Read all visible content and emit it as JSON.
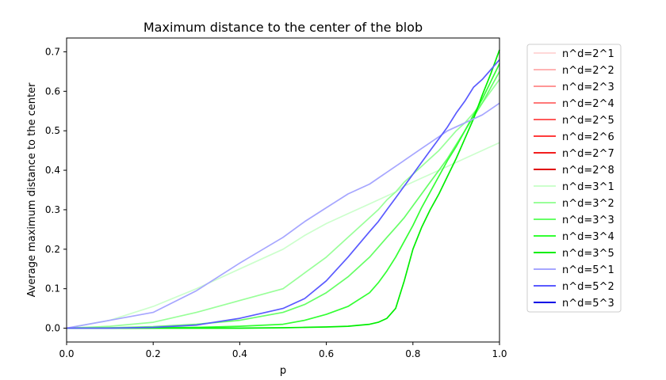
{
  "chart_data": {
    "type": "line",
    "title": "Maximum distance to the center of the blob",
    "xlabel": "p",
    "ylabel": "Average maximum distance to the center",
    "xlim": [
      0.0,
      1.0
    ],
    "ylim": [
      -0.035,
      0.735
    ],
    "xticks": [
      0.0,
      0.2,
      0.4,
      0.6,
      0.8,
      1.0
    ],
    "xtick_labels": [
      "0.0",
      "0.2",
      "0.4",
      "0.6",
      "0.8",
      "1.0"
    ],
    "yticks": [
      0.0,
      0.1,
      0.2,
      0.3,
      0.4,
      0.5,
      0.6,
      0.7
    ],
    "ytick_labels": [
      "0.0",
      "0.1",
      "0.2",
      "0.3",
      "0.4",
      "0.5",
      "0.6",
      "0.7"
    ],
    "grid": false,
    "legend_position": "outside-right",
    "x": [
      0.0,
      0.1,
      0.2,
      0.3,
      0.4,
      0.5,
      0.55,
      0.6,
      0.65,
      0.7,
      0.72,
      0.74,
      0.76,
      0.78,
      0.8,
      0.82,
      0.84,
      0.86,
      0.88,
      0.9,
      0.92,
      0.94,
      0.96,
      0.98,
      1.0
    ],
    "series": [
      {
        "name": "n^d=2^1",
        "color": "#ffd8d8",
        "values": null
      },
      {
        "name": "n^d=2^2",
        "color": "#ffb4b4",
        "values": null
      },
      {
        "name": "n^d=2^3",
        "color": "#ff9696",
        "values": null
      },
      {
        "name": "n^d=2^4",
        "color": "#ff7878",
        "values": null
      },
      {
        "name": "n^d=2^5",
        "color": "#ff5a5a",
        "values": null
      },
      {
        "name": "n^d=2^6",
        "color": "#ff3c3c",
        "values": null
      },
      {
        "name": "n^d=2^7",
        "color": "#f21e1e",
        "values": null
      },
      {
        "name": "n^d=2^8",
        "color": "#e00000",
        "values": null
      },
      {
        "name": "n^d=3^1",
        "color": "#ccffcc",
        "values": [
          0.0,
          0.02,
          0.055,
          0.1,
          0.15,
          0.2,
          0.235,
          0.265,
          0.29,
          0.315,
          0.325,
          0.335,
          0.345,
          0.36,
          0.37,
          0.38,
          0.39,
          0.4,
          0.41,
          0.42,
          0.43,
          0.44,
          0.45,
          0.46,
          0.47
        ]
      },
      {
        "name": "n^d=3^2",
        "color": "#99ff99",
        "values": [
          0.0,
          0.005,
          0.015,
          0.04,
          0.07,
          0.1,
          0.14,
          0.18,
          0.23,
          0.28,
          0.3,
          0.325,
          0.345,
          0.37,
          0.39,
          0.41,
          0.43,
          0.45,
          0.475,
          0.5,
          0.52,
          0.545,
          0.57,
          0.6,
          0.63
        ]
      },
      {
        "name": "n^d=3^3",
        "color": "#66ff66",
        "values": [
          0.0,
          0.001,
          0.004,
          0.01,
          0.02,
          0.04,
          0.06,
          0.09,
          0.13,
          0.18,
          0.205,
          0.23,
          0.255,
          0.28,
          0.31,
          0.34,
          0.37,
          0.4,
          0.43,
          0.465,
          0.5,
          0.535,
          0.57,
          0.61,
          0.65
        ]
      },
      {
        "name": "n^d=3^4",
        "color": "#33ff33",
        "values": [
          0.0,
          0.0,
          0.001,
          0.002,
          0.005,
          0.01,
          0.02,
          0.035,
          0.055,
          0.09,
          0.115,
          0.145,
          0.18,
          0.22,
          0.26,
          0.305,
          0.345,
          0.385,
          0.425,
          0.46,
          0.5,
          0.54,
          0.58,
          0.625,
          0.67
        ]
      },
      {
        "name": "n^d=3^5",
        "color": "#00ee00",
        "values": [
          0.0,
          0.0,
          0.0,
          0.0,
          0.0,
          0.001,
          0.002,
          0.003,
          0.005,
          0.01,
          0.015,
          0.025,
          0.05,
          0.12,
          0.2,
          0.255,
          0.3,
          0.34,
          0.385,
          0.43,
          0.48,
          0.53,
          0.59,
          0.645,
          0.705
        ]
      },
      {
        "name": "n^d=5^1",
        "color": "#a6a6ff",
        "values": [
          0.0,
          0.02,
          0.04,
          0.095,
          0.165,
          0.23,
          0.27,
          0.305,
          0.34,
          0.365,
          0.38,
          0.395,
          0.41,
          0.425,
          0.44,
          0.455,
          0.47,
          0.485,
          0.5,
          0.51,
          0.52,
          0.53,
          0.54,
          0.555,
          0.57
        ]
      },
      {
        "name": "n^d=5^2",
        "color": "#5a5aff",
        "values": [
          0.0,
          0.0,
          0.002,
          0.008,
          0.025,
          0.05,
          0.075,
          0.12,
          0.18,
          0.245,
          0.27,
          0.3,
          0.33,
          0.36,
          0.39,
          0.42,
          0.45,
          0.48,
          0.51,
          0.545,
          0.575,
          0.61,
          0.63,
          0.655,
          0.68
        ]
      },
      {
        "name": "n^d=5^3",
        "color": "#0000e6",
        "values": null
      }
    ]
  }
}
